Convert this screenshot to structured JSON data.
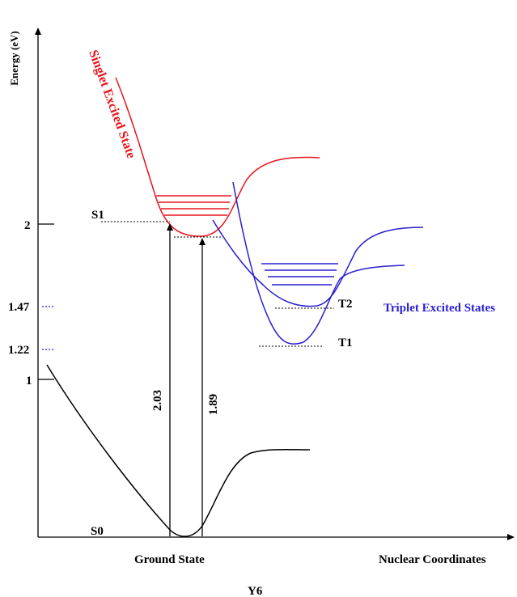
{
  "axes": {
    "y_label": "Energy (eV)",
    "x_label": "Nuclear Coordinates",
    "y_ticks": [
      "2",
      "1.47",
      "1.22",
      "1"
    ]
  },
  "molecule": "Y6",
  "states": {
    "ground_label": "Ground State",
    "singlet_label": "Singlet Excited State",
    "triplet_label": "Triplet Excited States",
    "s0": "S0",
    "s1": "S1",
    "t1": "T1",
    "t2": "T2"
  },
  "transitions": {
    "absorption": "2.03",
    "emission": "1.89"
  },
  "colors": {
    "singlet": "#e8141c",
    "triplet": "#2a1fd0",
    "ground": "#000000",
    "tick_dotted": "#2a1fd0"
  }
}
